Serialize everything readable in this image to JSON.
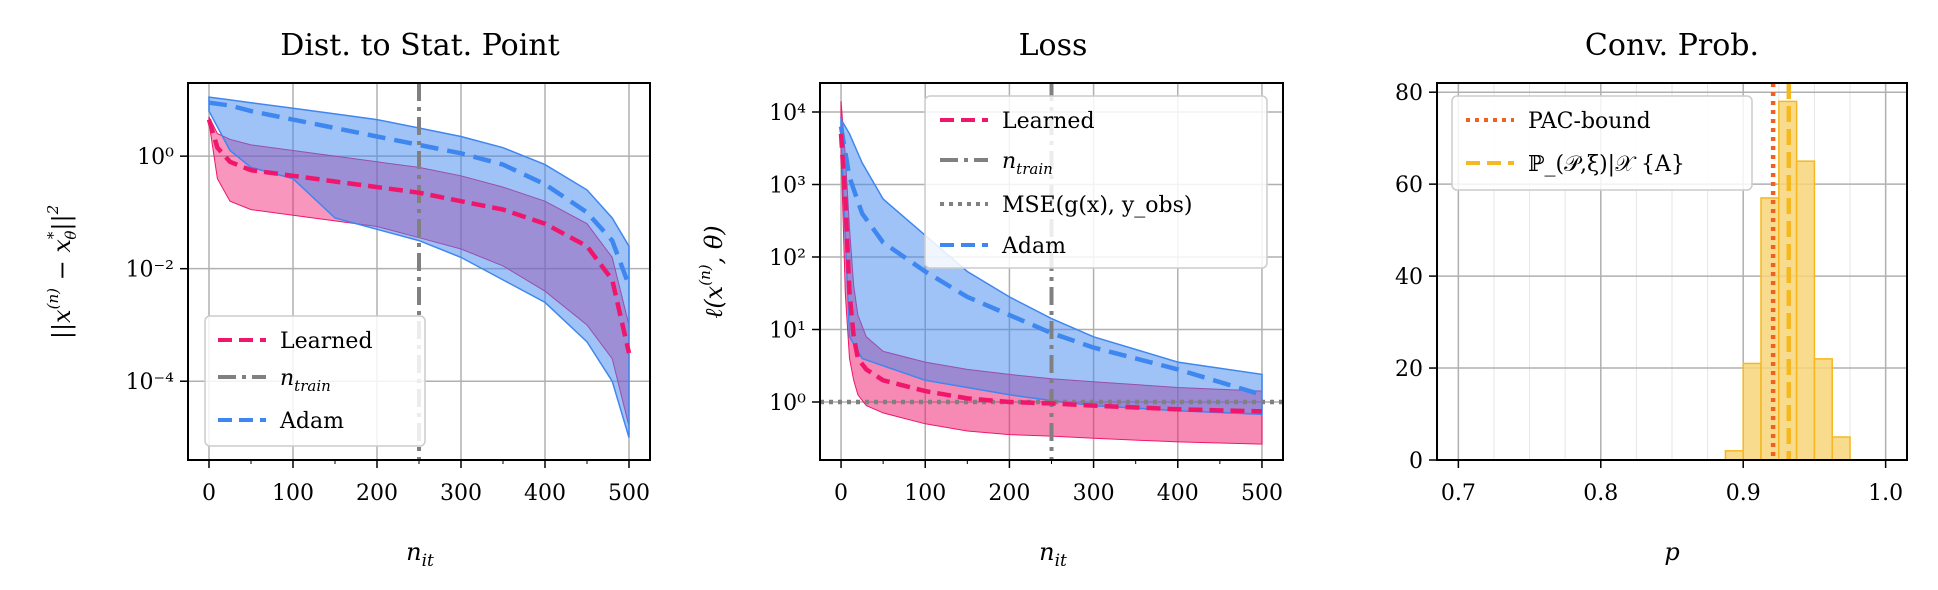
{
  "colors": {
    "learned": "#f0166c",
    "adam": "#3f87f0",
    "ntrain": "#808080",
    "mse": "#808080",
    "pac": "#f06020",
    "prob": "#f5b820",
    "prob_fill": "#f8d57a"
  },
  "chart_data": [
    {
      "type": "line",
      "title": "Dist. to Stat. Point",
      "xlabel": "n_it",
      "ylabel": "||x^(n) − x*_θ||²",
      "yscale": "log",
      "xlim": [
        -25,
        525
      ],
      "ylim_log10": [
        -5.4,
        1.3
      ],
      "xticks": [
        "0",
        "100",
        "200",
        "300",
        "400",
        "500"
      ],
      "yticks": [
        "10⁰",
        "10⁻²",
        "10⁻⁴"
      ],
      "grid": true,
      "legend_position": "lower left",
      "legend": [
        "Learned",
        "n_train",
        "Adam"
      ],
      "vline_x": 250,
      "series": [
        {
          "name": "Learned",
          "x": [
            0,
            10,
            25,
            50,
            100,
            150,
            200,
            250,
            300,
            350,
            400,
            450,
            480,
            500
          ],
          "y_log10": [
            0.65,
            0.15,
            -0.1,
            -0.25,
            -0.35,
            -0.45,
            -0.55,
            -0.65,
            -0.8,
            -0.95,
            -1.2,
            -1.6,
            -2.2,
            -3.5
          ],
          "band_low_log10": [
            0.6,
            -0.4,
            -0.8,
            -0.95,
            -1.05,
            -1.15,
            -1.25,
            -1.45,
            -1.65,
            -1.95,
            -2.4,
            -3.0,
            -3.6,
            -4.8
          ],
          "band_high_log10": [
            0.7,
            0.4,
            0.3,
            0.2,
            0.1,
            0.0,
            -0.1,
            -0.2,
            -0.35,
            -0.55,
            -0.8,
            -1.2,
            -1.8,
            -3.0
          ]
        },
        {
          "name": "Adam",
          "x": [
            0,
            25,
            50,
            100,
            150,
            200,
            250,
            300,
            350,
            400,
            450,
            480,
            500
          ],
          "y_log10": [
            0.95,
            0.9,
            0.8,
            0.65,
            0.5,
            0.35,
            0.2,
            0.05,
            -0.15,
            -0.5,
            -1.0,
            -1.5,
            -2.3
          ],
          "band_low_log10": [
            0.8,
            0.1,
            -0.2,
            -0.4,
            -1.1,
            -1.3,
            -1.5,
            -1.8,
            -2.2,
            -2.6,
            -3.3,
            -4.0,
            -5.0
          ],
          "band_high_log10": [
            1.05,
            1.0,
            0.95,
            0.85,
            0.75,
            0.65,
            0.5,
            0.35,
            0.15,
            -0.15,
            -0.6,
            -1.1,
            -1.6
          ]
        }
      ]
    },
    {
      "type": "line",
      "title": "Loss",
      "xlabel": "n_it",
      "ylabel": "ℓ(x^(n), θ)",
      "yscale": "log",
      "xlim": [
        -25,
        525
      ],
      "ylim_log10": [
        -0.8,
        4.4
      ],
      "xticks": [
        "0",
        "100",
        "200",
        "300",
        "400",
        "500"
      ],
      "yticks": [
        "10⁰",
        "10¹",
        "10²",
        "10³",
        "10⁴"
      ],
      "grid": true,
      "legend_position": "upper right",
      "legend": [
        "Learned",
        "n_train",
        "MSE(g(x), y_obs)",
        "Adam"
      ],
      "vline_x": 250,
      "hline_log10": 0.0,
      "series": [
        {
          "name": "Learned",
          "x": [
            0,
            5,
            10,
            15,
            20,
            30,
            50,
            100,
            150,
            200,
            250,
            300,
            400,
            500
          ],
          "y_log10": [
            3.7,
            2.8,
            1.5,
            0.9,
            0.6,
            0.45,
            0.3,
            0.15,
            0.05,
            0.0,
            -0.02,
            -0.05,
            -0.1,
            -0.13
          ],
          "band_low_log10": [
            3.5,
            1.5,
            0.6,
            0.3,
            0.1,
            -0.05,
            -0.15,
            -0.3,
            -0.4,
            -0.45,
            -0.47,
            -0.5,
            -0.55,
            -0.58
          ],
          "band_high_log10": [
            4.15,
            3.4,
            2.4,
            1.6,
            1.2,
            0.9,
            0.7,
            0.55,
            0.45,
            0.38,
            0.32,
            0.28,
            0.2,
            0.15
          ]
        },
        {
          "name": "Adam",
          "x": [
            0,
            10,
            25,
            50,
            100,
            150,
            200,
            250,
            300,
            400,
            500
          ],
          "y_log10": [
            3.8,
            3.1,
            2.6,
            2.2,
            1.8,
            1.45,
            1.2,
            0.95,
            0.75,
            0.45,
            0.1
          ],
          "band_low_log10": [
            3.7,
            0.9,
            0.6,
            0.5,
            0.3,
            0.2,
            0.1,
            0.02,
            -0.05,
            -0.12,
            -0.17
          ],
          "band_high_log10": [
            3.9,
            3.7,
            3.3,
            2.8,
            2.3,
            1.8,
            1.45,
            1.15,
            0.9,
            0.55,
            0.38
          ]
        }
      ]
    },
    {
      "type": "bar",
      "title": "Conv. Prob.",
      "xlabel": "p",
      "ylabel": "",
      "xlim": [
        0.685,
        1.015
      ],
      "ylim": [
        0,
        82
      ],
      "xticks": [
        "0.7",
        "0.8",
        "0.9",
        "1.0"
      ],
      "yticks": [
        "0",
        "20",
        "40",
        "60",
        "80"
      ],
      "grid": true,
      "legend_position": "upper left",
      "legend": [
        "PAC-bound",
        "ℙ_(𝒫,ξ)|𝒳 {A}"
      ],
      "pac_bound_x": 0.921,
      "mean_x": 0.932,
      "bin_width": 0.0125,
      "bin_edges_start": [
        0.8875,
        0.9,
        0.9125,
        0.925,
        0.9375,
        0.95,
        0.9625
      ],
      "values": [
        2,
        21,
        57,
        78,
        65,
        22,
        5
      ]
    }
  ]
}
